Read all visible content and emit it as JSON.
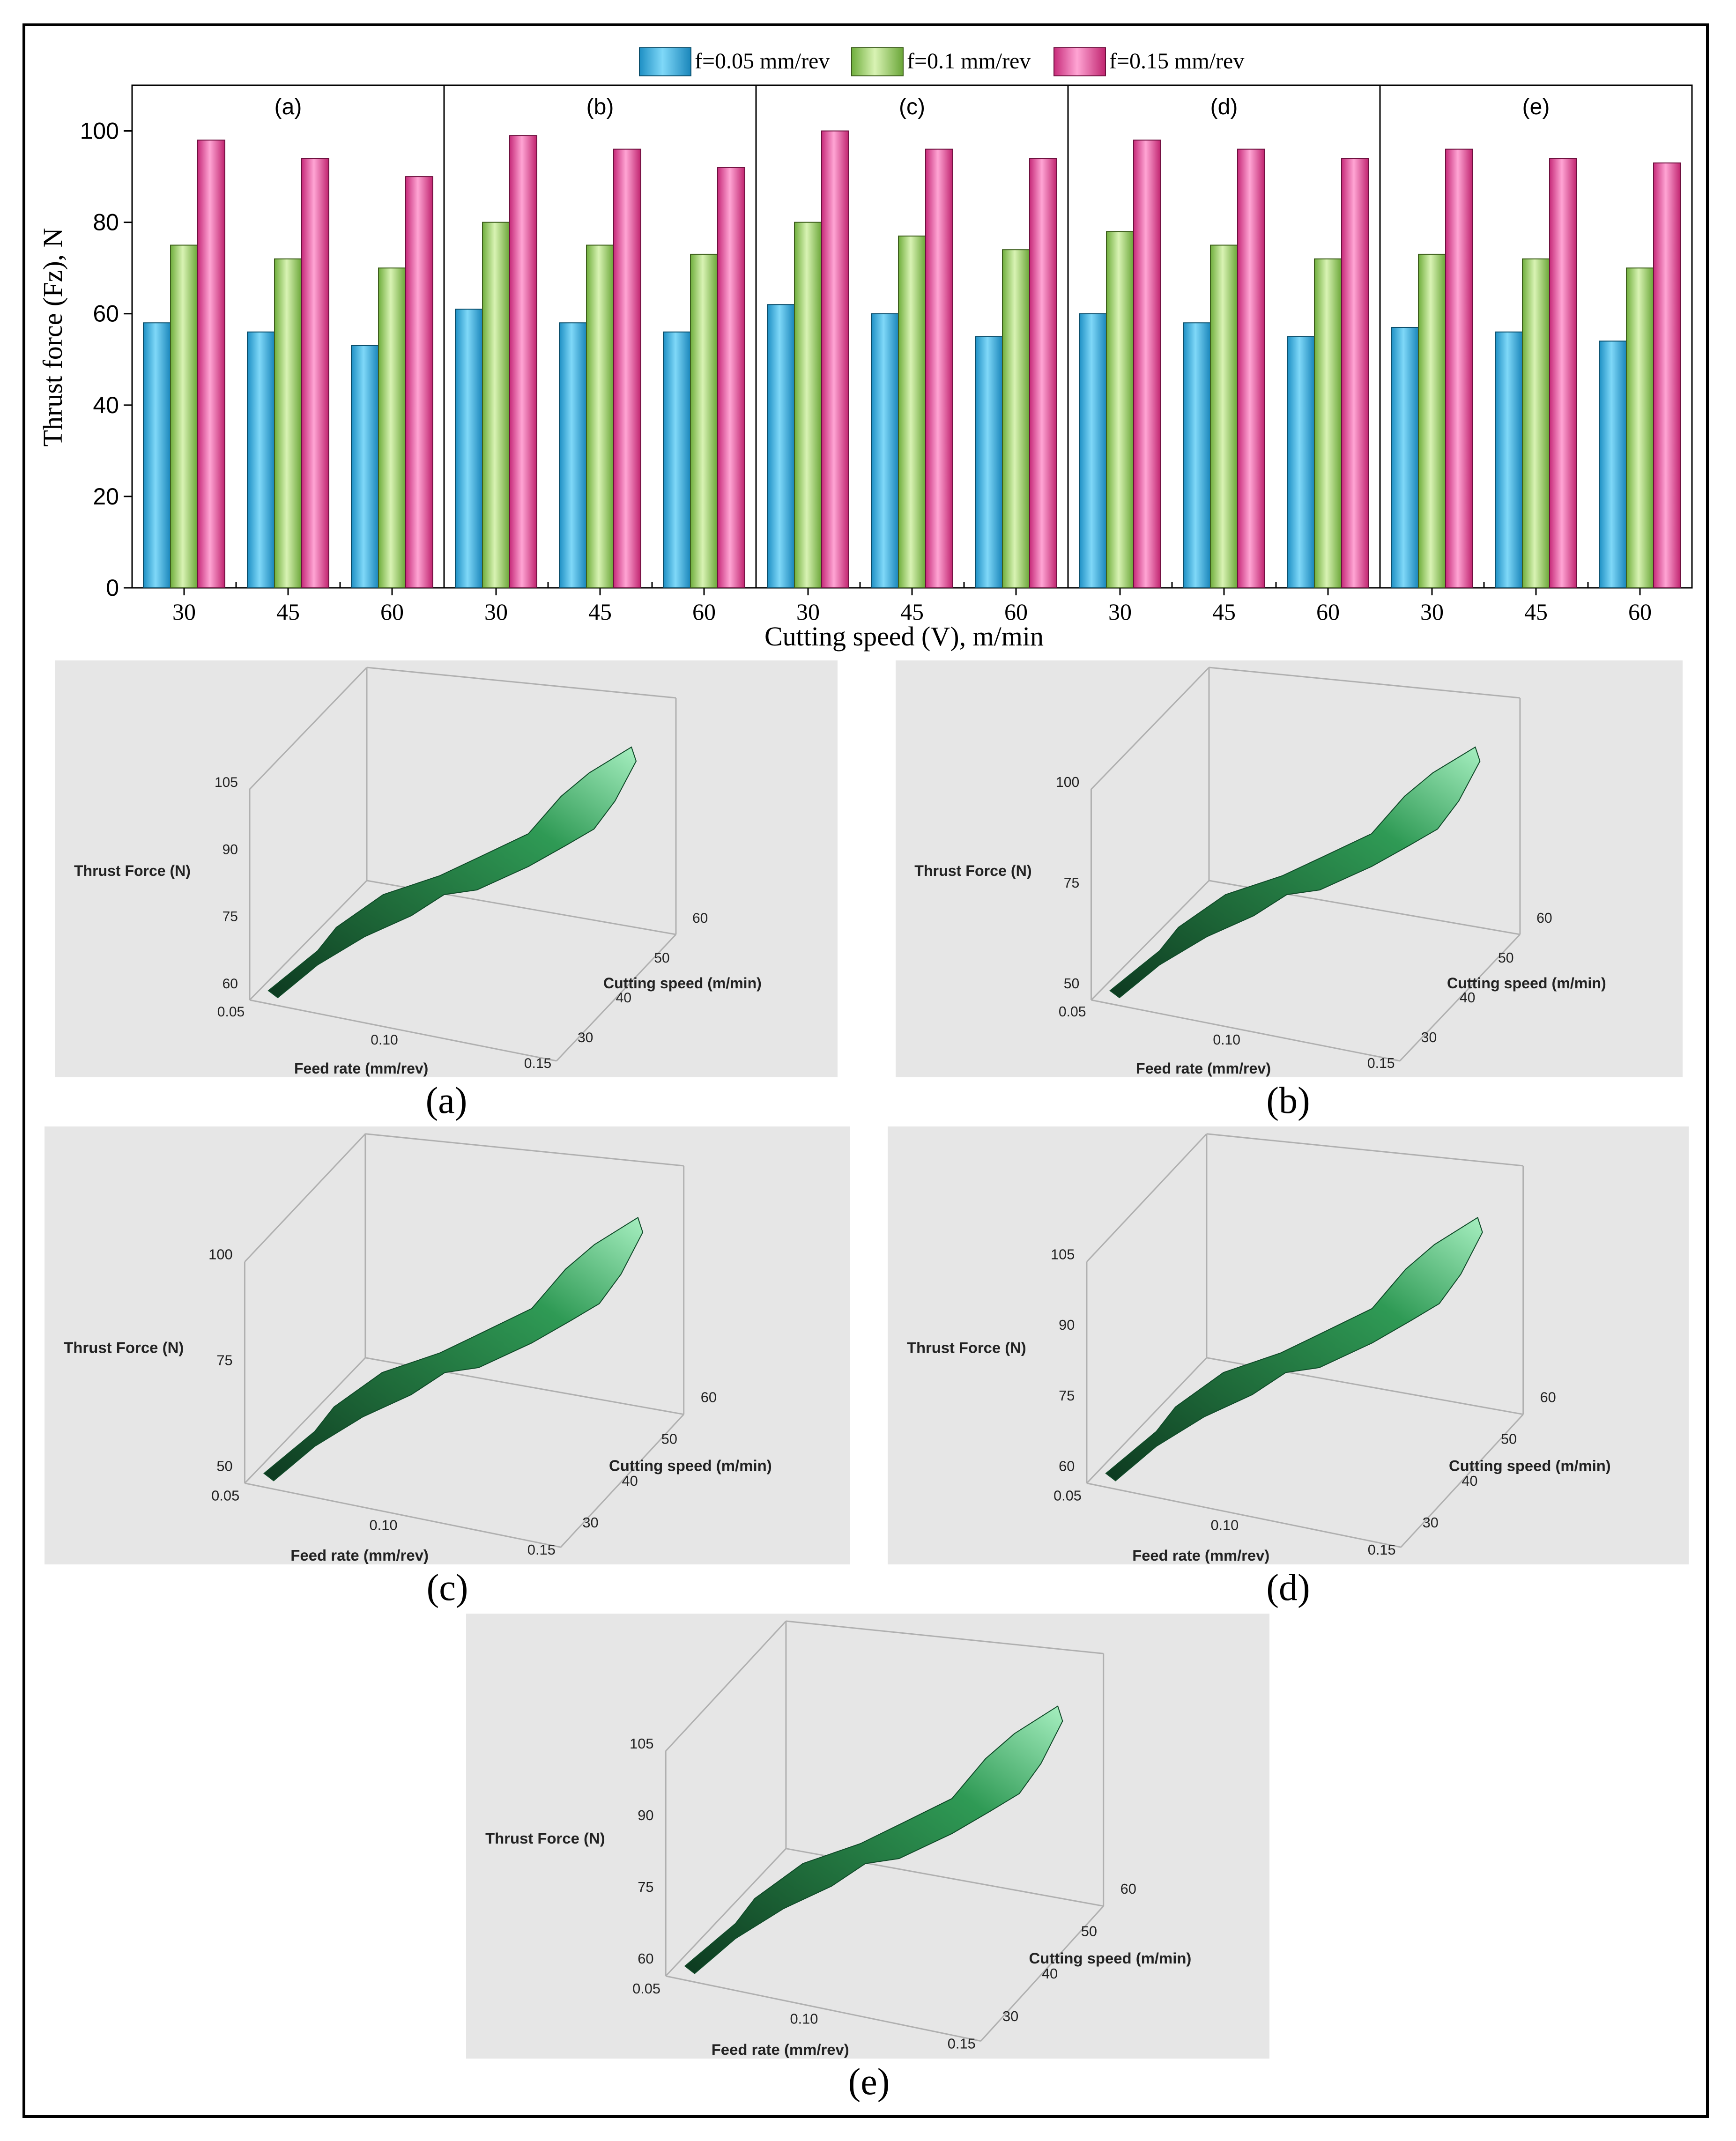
{
  "chart_data": [
    {
      "type": "bar",
      "title": "",
      "xlabel": "Cutting speed (V), m/min",
      "ylabel": "Thrust force (Fz), N",
      "ylim": [
        0,
        110
      ],
      "yticks": [
        0,
        20,
        40,
        60,
        80,
        100
      ],
      "legend_position": "top",
      "groups": [
        {
          "label": "(a)",
          "categories": [
            "30",
            "45",
            "60"
          ],
          "series": [
            {
              "name": "f=0.05 mm/rev",
              "values": [
                58,
                56,
                53
              ]
            },
            {
              "name": "f=0.1 mm/rev",
              "values": [
                75,
                72,
                70
              ]
            },
            {
              "name": "f=0.15 mm/rev",
              "values": [
                98,
                94,
                90
              ]
            }
          ]
        },
        {
          "label": "(b)",
          "categories": [
            "30",
            "45",
            "60"
          ],
          "series": [
            {
              "name": "f=0.05 mm/rev",
              "values": [
                61,
                58,
                56
              ]
            },
            {
              "name": "f=0.1 mm/rev",
              "values": [
                80,
                75,
                73
              ]
            },
            {
              "name": "f=0.15 mm/rev",
              "values": [
                99,
                96,
                92
              ]
            }
          ]
        },
        {
          "label": "(c)",
          "categories": [
            "30",
            "45",
            "60"
          ],
          "series": [
            {
              "name": "f=0.05 mm/rev",
              "values": [
                62,
                60,
                55
              ]
            },
            {
              "name": "f=0.1 mm/rev",
              "values": [
                80,
                77,
                74
              ]
            },
            {
              "name": "f=0.15 mm/rev",
              "values": [
                100,
                96,
                94
              ]
            }
          ]
        },
        {
          "label": "(d)",
          "categories": [
            "30",
            "45",
            "60"
          ],
          "series": [
            {
              "name": "f=0.05 mm/rev",
              "values": [
                60,
                58,
                55
              ]
            },
            {
              "name": "f=0.1 mm/rev",
              "values": [
                78,
                75,
                72
              ]
            },
            {
              "name": "f=0.15 mm/rev",
              "values": [
                98,
                96,
                94
              ]
            }
          ]
        },
        {
          "label": "(e)",
          "categories": [
            "30",
            "45",
            "60"
          ],
          "series": [
            {
              "name": "f=0.05 mm/rev",
              "values": [
                57,
                56,
                54
              ]
            },
            {
              "name": "f=0.1 mm/rev",
              "values": [
                73,
                72,
                70
              ]
            },
            {
              "name": "f=0.15 mm/rev",
              "values": [
                96,
                94,
                93
              ]
            }
          ]
        }
      ],
      "colors": {
        "f=0.05 mm/rev": "#33b5e8",
        "f=0.1 mm/rev": "#a8d873",
        "f=0.15 mm/rev": "#ea4f9c"
      }
    },
    {
      "type": "surface",
      "caption": "(a)",
      "zlabel": "Thrust Force (N)",
      "xlabel": "Feed rate (mm/rev)",
      "ylabel": "Cutting speed (m/min)",
      "zticks": [
        "60",
        "75",
        "90",
        "105"
      ],
      "xticks": [
        "0.05",
        "0.10",
        "0.15"
      ],
      "yticks": [
        "30",
        "40",
        "50",
        "60"
      ]
    },
    {
      "type": "surface",
      "caption": "(b)",
      "zlabel": "Thrust Force (N)",
      "xlabel": "Feed rate (mm/rev)",
      "ylabel": "Cutting speed (m/min)",
      "zticks": [
        "50",
        "75",
        "100"
      ],
      "xticks": [
        "0.05",
        "0.10",
        "0.15"
      ],
      "yticks": [
        "30",
        "40",
        "50",
        "60"
      ]
    },
    {
      "type": "surface",
      "caption": "(c)",
      "zlabel": "Thrust Force (N)",
      "xlabel": "Feed rate (mm/rev)",
      "ylabel": "Cutting speed (m/min)",
      "zticks": [
        "50",
        "75",
        "100"
      ],
      "xticks": [
        "0.05",
        "0.10",
        "0.15"
      ],
      "yticks": [
        "30",
        "40",
        "50",
        "60"
      ]
    },
    {
      "type": "surface",
      "caption": "(d)",
      "zlabel": "Thrust Force (N)",
      "xlabel": "Feed rate (mm/rev)",
      "ylabel": "Cutting speed (m/min)",
      "zticks": [
        "60",
        "75",
        "90",
        "105"
      ],
      "xticks": [
        "0.05",
        "0.10",
        "0.15"
      ],
      "yticks": [
        "30",
        "40",
        "50",
        "60"
      ]
    },
    {
      "type": "surface",
      "caption": "(e)",
      "zlabel": "Thrust Force (N)",
      "xlabel": "Feed rate (mm/rev)",
      "ylabel": "Cutting speed (m/min)",
      "zticks": [
        "60",
        "75",
        "90",
        "105"
      ],
      "xticks": [
        "0.05",
        "0.10",
        "0.15"
      ],
      "yticks": [
        "30",
        "40",
        "50",
        "60"
      ]
    }
  ]
}
